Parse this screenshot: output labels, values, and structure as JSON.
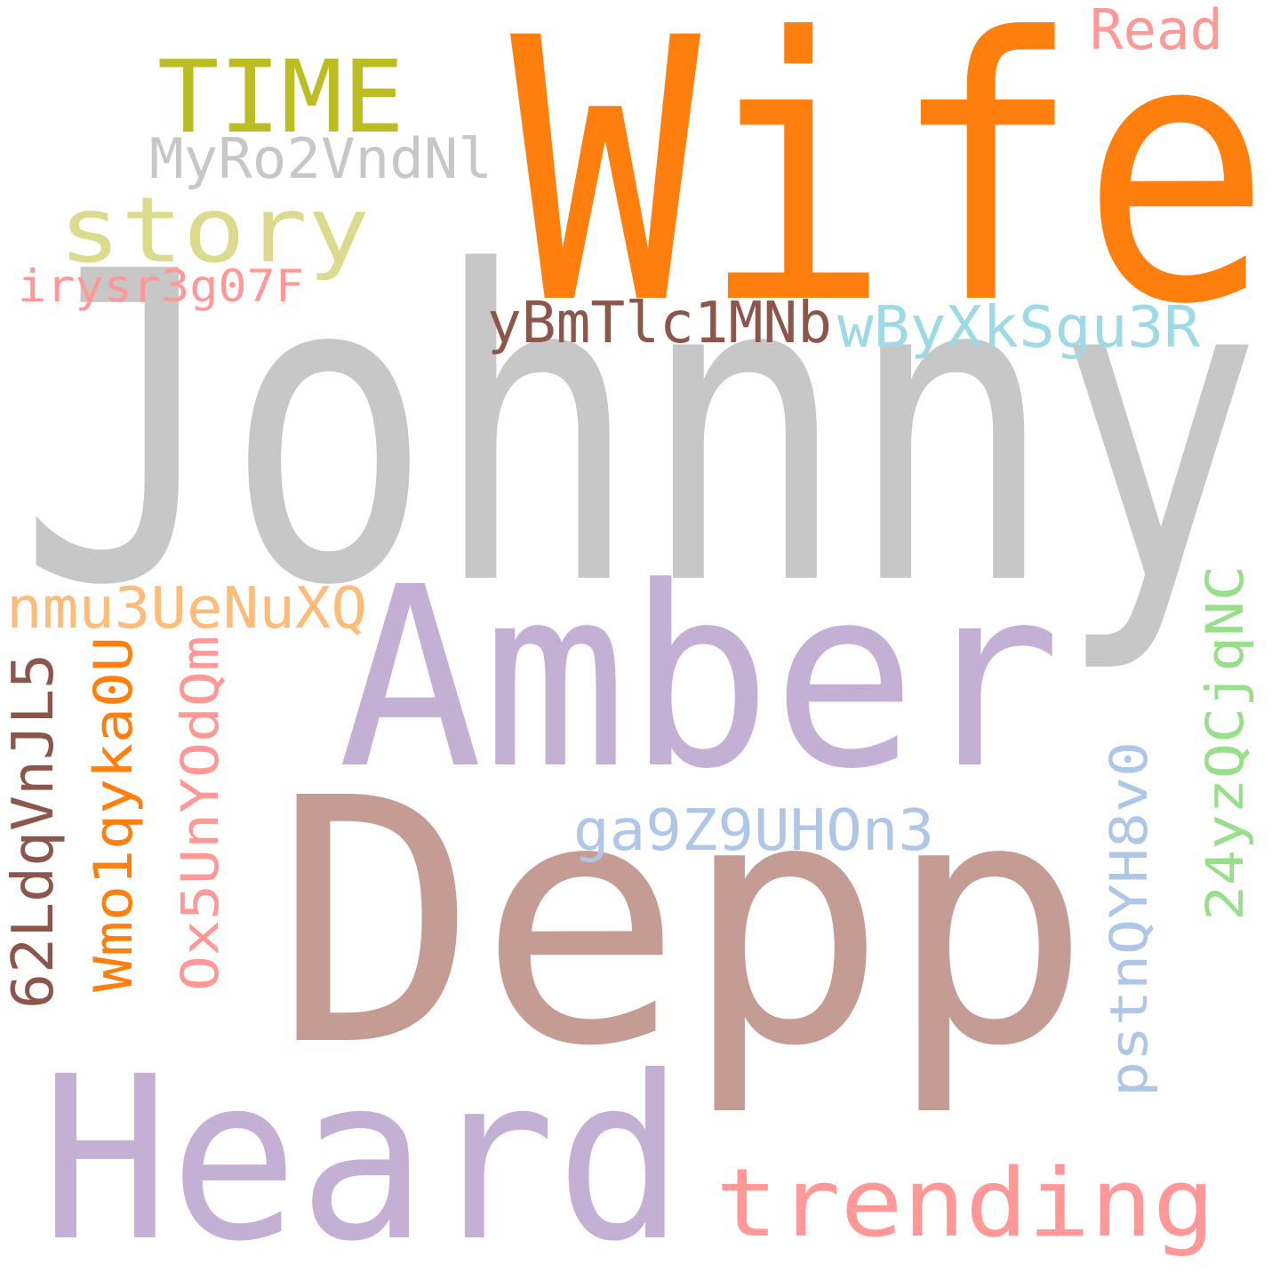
{
  "cloud": {
    "background_color": "#ffffff",
    "words": [
      {
        "text": "Johnny",
        "color": "#c7c7c7"
      },
      {
        "text": "Wife",
        "color": "#ff7f0e"
      },
      {
        "text": "Depp",
        "color": "#c49c94"
      },
      {
        "text": "Amber",
        "color": "#c5b0d5"
      },
      {
        "text": "Heard",
        "color": "#c5b0d5"
      },
      {
        "text": "trending",
        "color": "#ff9896"
      },
      {
        "text": "TIME",
        "color": "#bcbd22"
      },
      {
        "text": "story",
        "color": "#dbdb8d"
      },
      {
        "text": "Read",
        "color": "#ff9896"
      },
      {
        "text": "MyRo2VndNl",
        "color": "#c7c7c7"
      },
      {
        "text": "irysr3g07F",
        "color": "#ff9896"
      },
      {
        "text": "yBmTlc1MNb",
        "color": "#8c564b"
      },
      {
        "text": "wByXkSgu3R",
        "color": "#9edae5"
      },
      {
        "text": "nmu3UeNuXQ",
        "color": "#ffbb78"
      },
      {
        "text": "62LdqVnJL5",
        "color": "#8c564b"
      },
      {
        "text": "Wmo1qyka0U",
        "color": "#ff7f0e"
      },
      {
        "text": "Ox5UnYOdQm",
        "color": "#ff9896"
      },
      {
        "text": "ga9Z9UHOn3",
        "color": "#aec7e8"
      },
      {
        "text": "pstnQYH8v0",
        "color": "#aec7e8"
      },
      {
        "text": "24yzQCjqNC",
        "color": "#98df8a"
      }
    ]
  }
}
